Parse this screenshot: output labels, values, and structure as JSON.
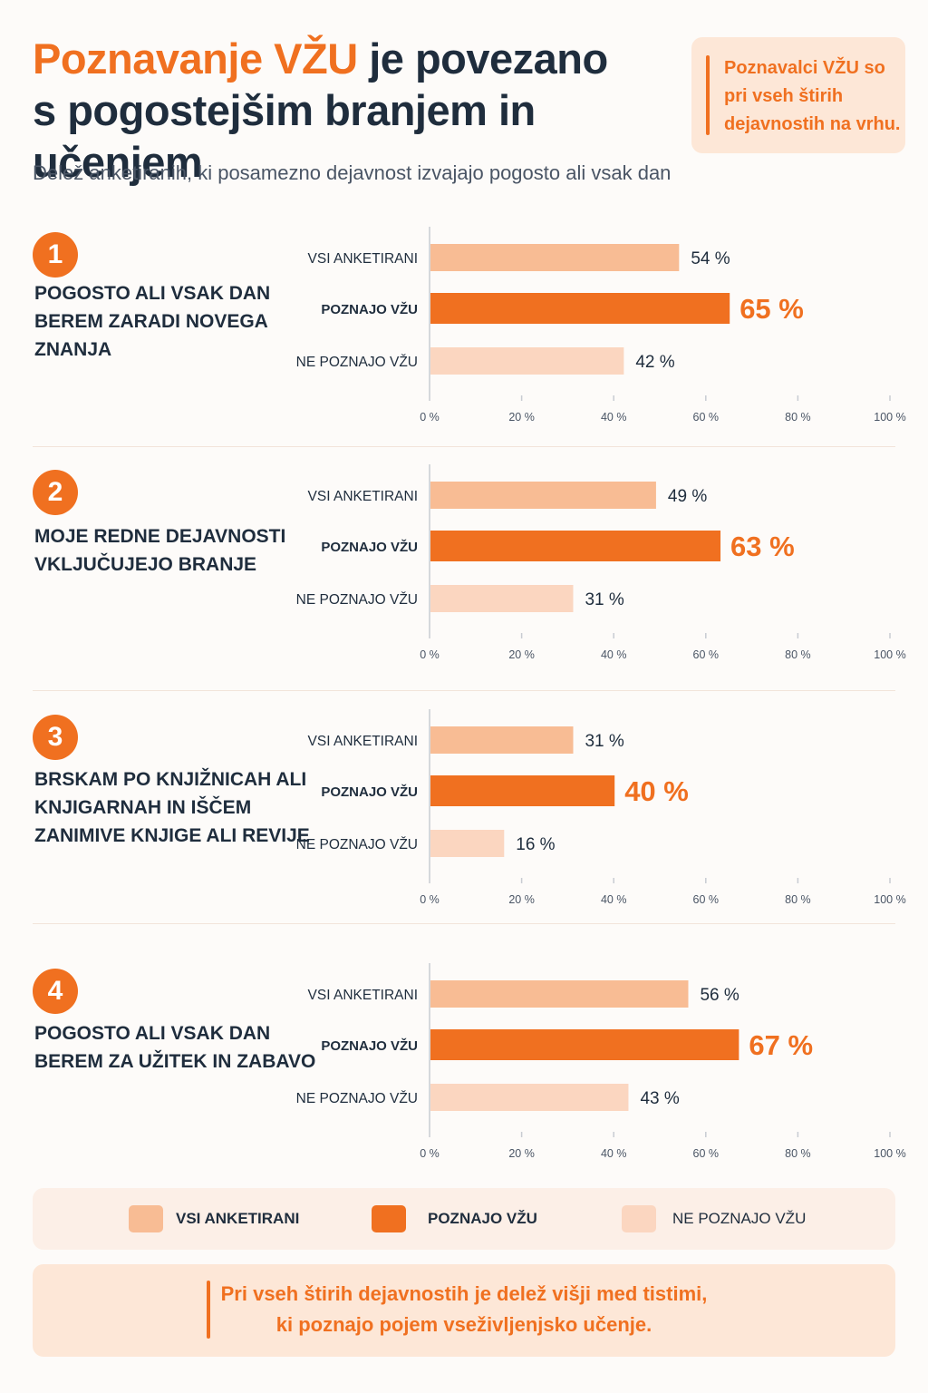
{
  "header": {
    "title_accent": "Poznavanje VŽU",
    "title_rest_line1": " je povezano",
    "title_line2": "s pogostejšim branjem in učenjem",
    "subtitle": "Delež anketiranih, ki posamezno dejavnost izvajajo pogosto ali vsak dan"
  },
  "callout": {
    "text": "Poznavalci VŽU so pri vseh štirih dejavnostih na vrhu."
  },
  "colors": {
    "accent": "#f07020",
    "all": "#f8bc94",
    "know": "#f07020",
    "dont_know": "#fbd6c0",
    "text_dark": "#1f2d3d"
  },
  "chart_data": {
    "type": "bar",
    "orientation": "horizontal",
    "xlim": [
      0,
      100
    ],
    "x_ticks": [
      "0 %",
      "20 %",
      "40 %",
      "60 %",
      "80 %",
      "100 %"
    ],
    "group_labels": [
      "VSI ANKETIRANI",
      "POZNAJO VŽU",
      "NE POZNAJO VŽU"
    ],
    "panels": [
      {
        "number": "1",
        "label": "POGOSTO ALI VSAK DAN BEREM ZARADI NOVEGA ZNANJA",
        "values": [
          54,
          65,
          42
        ],
        "value_labels": [
          "54 %",
          "65 %",
          "42 %"
        ]
      },
      {
        "number": "2",
        "label": "MOJE REDNE DEJAVNOSTI VKLJUČUJEJO BRANJE",
        "values": [
          49,
          63,
          31
        ],
        "value_labels": [
          "49 %",
          "63 %",
          "31 %"
        ]
      },
      {
        "number": "3",
        "label": "BRSKAM PO KNJIŽNICAH ALI KNJIGARNAH IN IŠČEM ZANIMIVE KNJIGE ALI REVIJE",
        "values": [
          31,
          40,
          16
        ],
        "value_labels": [
          "31 %",
          "40 %",
          "16 %"
        ]
      },
      {
        "number": "4",
        "label": "POGOSTO ALI VSAK DAN BEREM ZA UŽITEK IN ZABAVO",
        "values": [
          56,
          67,
          43
        ],
        "value_labels": [
          "56 %",
          "67 %",
          "43 %"
        ]
      }
    ],
    "legend": [
      "VSI ANKETIRANI",
      "POZNAJO VŽU",
      "NE POZNAJO VŽU"
    ],
    "legend_placement": "bottom"
  },
  "footer": {
    "line1": "Pri vseh štirih dejavnostih je delež višji med tistimi,",
    "line2": "ki poznajo pojem vseživljenjsko učenje."
  }
}
